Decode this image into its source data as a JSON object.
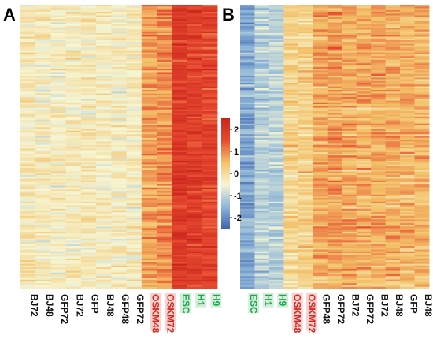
{
  "panels": {
    "a": {
      "letter": "A"
    },
    "b": {
      "letter": "B"
    }
  },
  "colors": {
    "black_label": "#111111",
    "red_label": "#d7261e",
    "green_label": "#19a84a",
    "red_label_bg": "#f7d2cf",
    "green_label_bg": "#d3efdb"
  },
  "chart_data": [
    {
      "type": "heatmap",
      "panel": "A",
      "columns": [
        {
          "label": "BJ72",
          "group": "black",
          "level": -0.25
        },
        {
          "label": "BJ48",
          "group": "black",
          "level": -0.3
        },
        {
          "label": "GFP72",
          "group": "black",
          "level": -0.35
        },
        {
          "label": "BJ72",
          "group": "black",
          "level": -0.3
        },
        {
          "label": "GFP",
          "group": "black",
          "level": -0.3
        },
        {
          "label": "BJ48",
          "group": "black",
          "level": -0.35
        },
        {
          "label": "GFP48",
          "group": "black",
          "level": -0.35
        },
        {
          "label": "GFP72",
          "group": "black",
          "level": -0.3
        },
        {
          "label": "OSKM48",
          "group": "red",
          "level": 0.8
        },
        {
          "label": "OSKM72",
          "group": "red",
          "level": 0.9
        },
        {
          "label": "ESC",
          "group": "green",
          "level": 1.9
        },
        {
          "label": "H1",
          "group": "green",
          "level": 1.8
        },
        {
          "label": "H9",
          "group": "green",
          "level": 1.7
        }
      ],
      "rows": 160
    },
    {
      "type": "heatmap",
      "panel": "B",
      "columns": [
        {
          "label": "ESC",
          "group": "green",
          "level": -1.6
        },
        {
          "label": "H1",
          "group": "green",
          "level": -1.1
        },
        {
          "label": "H9",
          "group": "green",
          "level": -1.1
        },
        {
          "label": "OSKM48",
          "group": "red",
          "level": 0.15
        },
        {
          "label": "OSKM72",
          "group": "red",
          "level": 0.2
        },
        {
          "label": "GFP48",
          "group": "black",
          "level": 0.7
        },
        {
          "label": "GFP72",
          "group": "black",
          "level": 0.8
        },
        {
          "label": "BJ72",
          "group": "black",
          "level": 0.7
        },
        {
          "label": "GFP72",
          "group": "black",
          "level": 0.65
        },
        {
          "label": "BJ72",
          "group": "black",
          "level": 0.7
        },
        {
          "label": "BJ48",
          "group": "black",
          "level": 0.65
        },
        {
          "label": "GFP",
          "group": "black",
          "level": 0.6
        },
        {
          "label": "BJ48",
          "group": "black",
          "level": 0.55
        }
      ],
      "rows": 160
    },
    {
      "type": "colorbar",
      "range": [
        -2.5,
        2.5
      ],
      "ticks": [
        {
          "value": 2,
          "label": "2"
        },
        {
          "value": 1,
          "label": "1"
        },
        {
          "value": 0,
          "label": "0"
        },
        {
          "value": -1,
          "label": "-1"
        },
        {
          "value": -2,
          "label": "-2"
        }
      ],
      "palette": [
        "#3f62ae",
        "#8fb7d8",
        "#f6f6d4",
        "#f3c168",
        "#e74a30",
        "#c9241c"
      ]
    }
  ]
}
